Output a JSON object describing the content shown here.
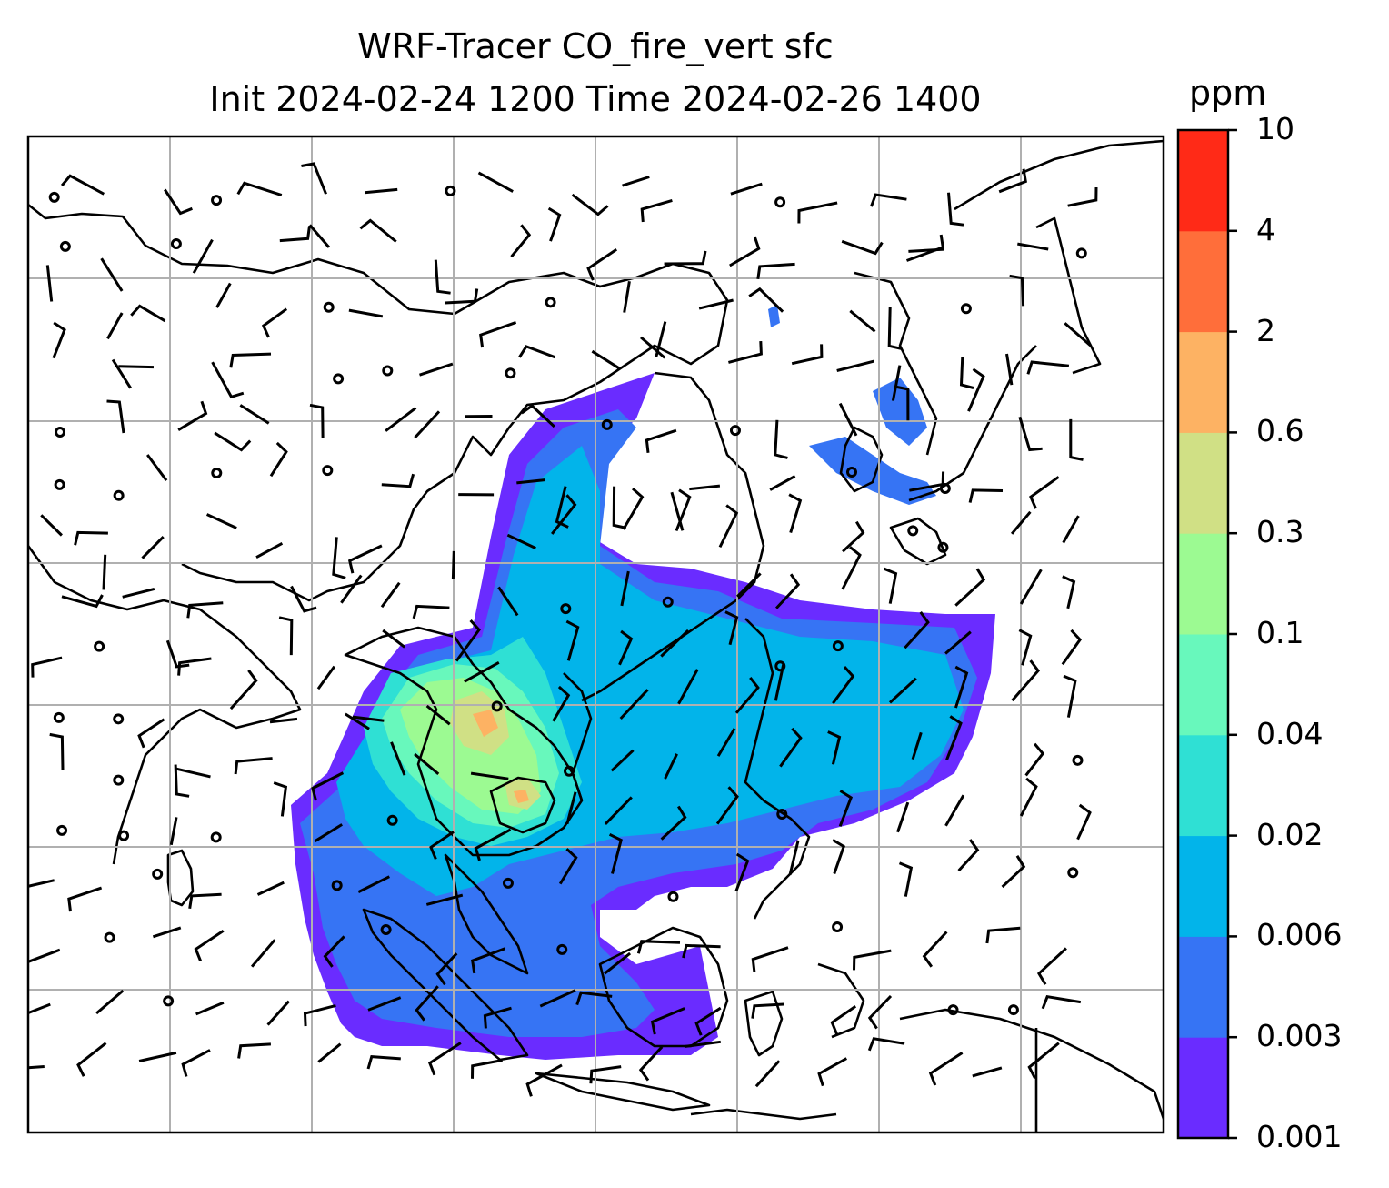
{
  "title": {
    "line1": "WRF-Tracer CO_fire_vert sfc",
    "line2": "Init 2024-02-24 1200 Time 2024-02-26 1400"
  },
  "colorbar": {
    "unit": "ppm",
    "levels": [
      {
        "label": "0.001",
        "color": "#6a2cff"
      },
      {
        "label": "0.003",
        "color": "#3674f4"
      },
      {
        "label": "0.006",
        "color": "#02b4ea"
      },
      {
        "label": "0.02",
        "color": "#2fe0d4"
      },
      {
        "label": "0.04",
        "color": "#68f8bc"
      },
      {
        "label": "0.1",
        "color": "#9cfa92"
      },
      {
        "label": "0.3",
        "color": "#d0e085"
      },
      {
        "label": "0.6",
        "color": "#fdb263"
      },
      {
        "label": "2",
        "color": "#ff6e3a"
      },
      {
        "label": "4",
        "color": "#ff2a17"
      },
      {
        "label": "10",
        "color": null
      }
    ]
  },
  "map": {
    "gridlines": true,
    "grid_color": "#b0b0b0",
    "overlay": "wind barbs and calm circles",
    "coastline_color": "#000000"
  }
}
